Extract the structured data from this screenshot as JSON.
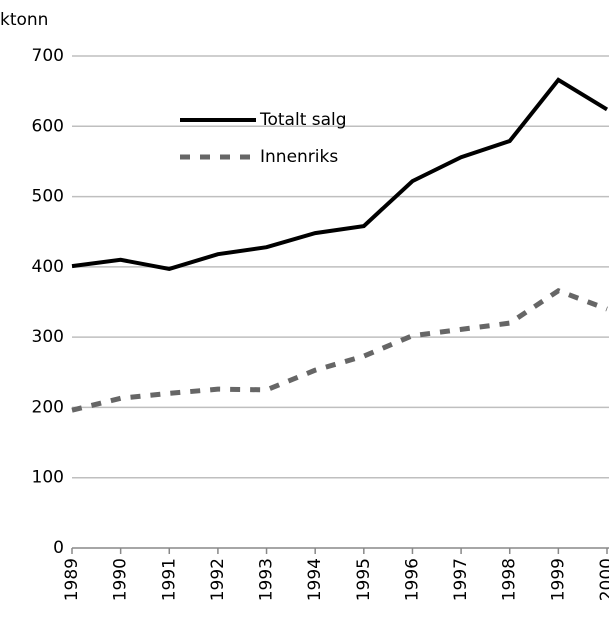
{
  "chart_data": {
    "type": "line",
    "y_label": "ktonn",
    "x": [
      1989,
      1990,
      1991,
      1992,
      1993,
      1994,
      1995,
      1996,
      1997,
      1998,
      1999,
      2000
    ],
    "xlim": [
      1989,
      2000
    ],
    "xticks": [
      1989,
      1990,
      1991,
      1992,
      1993,
      1994,
      1995,
      1996,
      1997,
      1998,
      1999,
      2000
    ],
    "ylim": [
      0,
      700
    ],
    "yticks": [
      0,
      100,
      200,
      300,
      400,
      500,
      600,
      700
    ],
    "grid": true,
    "legend": "upper left",
    "series": [
      {
        "name": "Totalt salg",
        "color": "#000000",
        "style": "solid",
        "values": [
          401,
          410,
          397,
          418,
          428,
          448,
          458,
          522,
          556,
          579,
          666,
          624
        ]
      },
      {
        "name": "Innenriks",
        "color": "#666666",
        "style": "dashed",
        "values": [
          196,
          213,
          220,
          226,
          225,
          253,
          273,
          302,
          311,
          320,
          366,
          340
        ]
      }
    ]
  }
}
